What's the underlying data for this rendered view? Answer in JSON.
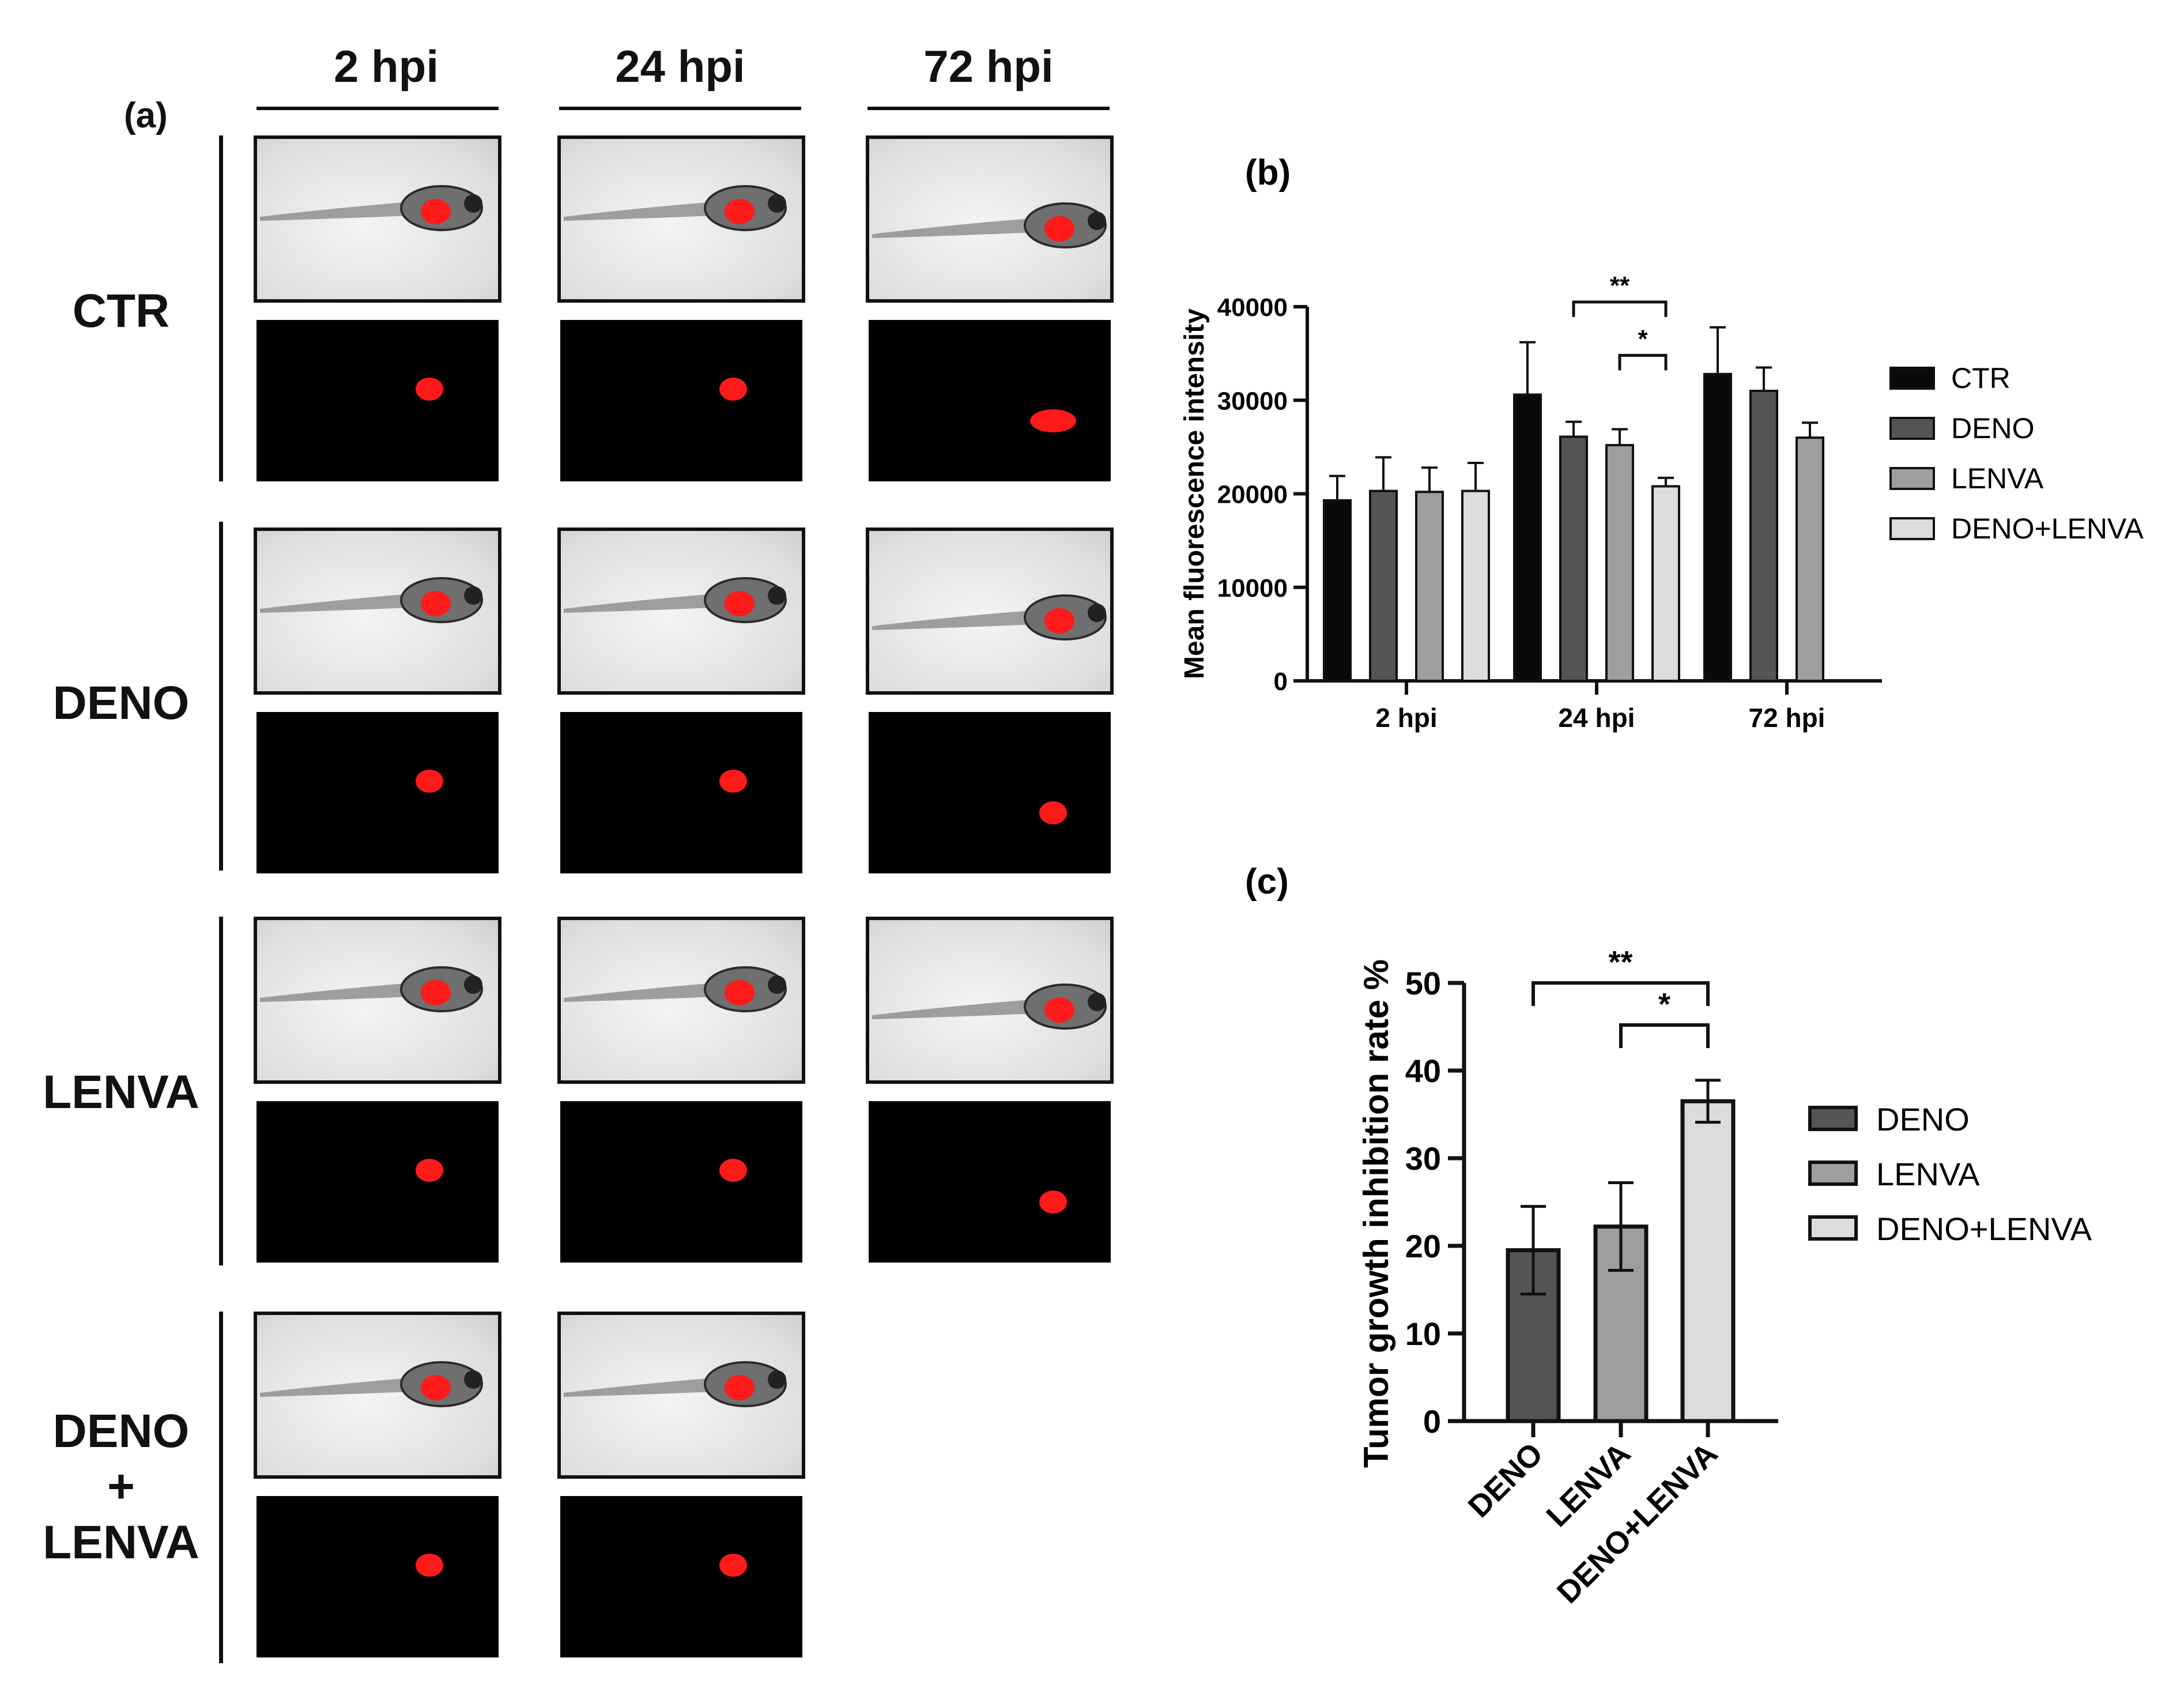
{
  "panel_a": {
    "label": "(a)",
    "time_points": [
      "2 hpi",
      "24 hpi",
      "72 hpi"
    ],
    "groups": [
      {
        "label": "CTR",
        "label_lines": [
          "CTR"
        ],
        "n_images": 3
      },
      {
        "label": "DENO",
        "label_lines": [
          "DENO"
        ],
        "n_images": 3
      },
      {
        "label": "LENVA",
        "label_lines": [
          "LENVA"
        ],
        "n_images": 3
      },
      {
        "label": "DENO + LENVA",
        "label_lines": [
          "DENO",
          "+",
          "LENVA"
        ],
        "n_images": 2
      }
    ]
  },
  "colors": {
    "ctr": "#0a0a0a",
    "deno": "#555555",
    "lenva": "#9e9e9e",
    "deno_lenva": "#dcdcdc",
    "axis": "#111111",
    "tumor": "#ff1a1a"
  },
  "chart_data": [
    {
      "panel_label": "(b)",
      "type": "bar",
      "title": "",
      "xlabel": "",
      "ylabel": "Mean fluorescence intensity",
      "categories": [
        "2 hpi",
        "24 hpi",
        "72 hpi"
      ],
      "ylim": [
        0,
        40000
      ],
      "yticks": [
        0,
        10000,
        20000,
        30000,
        40000
      ],
      "series": [
        {
          "name": "CTR",
          "color": "#0a0a0a",
          "values": [
            19300,
            30600,
            32800
          ],
          "errors": [
            2600,
            5600,
            5000
          ]
        },
        {
          "name": "DENO",
          "color": "#555555",
          "values": [
            20300,
            26100,
            31000
          ],
          "errors": [
            3600,
            1600,
            2500
          ]
        },
        {
          "name": "LENVA",
          "color": "#9e9e9e",
          "values": [
            20200,
            25200,
            26000
          ],
          "errors": [
            2600,
            1700,
            1600
          ]
        },
        {
          "name": "DENO+LENVA",
          "color": "#dcdcdc",
          "values": [
            20300,
            20800,
            null
          ],
          "errors": [
            3000,
            900,
            null
          ]
        }
      ],
      "significance": [
        {
          "label": "**",
          "category": "24 hpi",
          "from": "DENO",
          "to": "DENO+LENVA",
          "y": 40500
        },
        {
          "label": "*",
          "category": "24 hpi",
          "from": "LENVA",
          "to": "DENO+LENVA",
          "y": 34800
        }
      ],
      "legend": {
        "position": "right"
      }
    },
    {
      "panel_label": "(c)",
      "type": "bar",
      "title": "",
      "xlabel": "",
      "ylabel": "Tumor growth inhibition rate %",
      "categories": [
        "DENO",
        "LENVA",
        "DENO+LENVA"
      ],
      "ylim": [
        0,
        50
      ],
      "yticks": [
        0,
        10,
        20,
        30,
        40,
        50
      ],
      "values": [
        19.5,
        22.2,
        36.5
      ],
      "errors": [
        5.0,
        5.0,
        2.4
      ],
      "colors": [
        "#555555",
        "#9e9e9e",
        "#dcdcdc"
      ],
      "significance": [
        {
          "label": "**",
          "from": "DENO",
          "to": "DENO+LENVA",
          "y": 50
        },
        {
          "label": "*",
          "from": "LENVA",
          "to": "DENO+LENVA",
          "y": 45.2
        }
      ],
      "legend": {
        "position": "right",
        "entries": [
          "DENO",
          "LENVA",
          "DENO+LENVA"
        ]
      }
    }
  ]
}
